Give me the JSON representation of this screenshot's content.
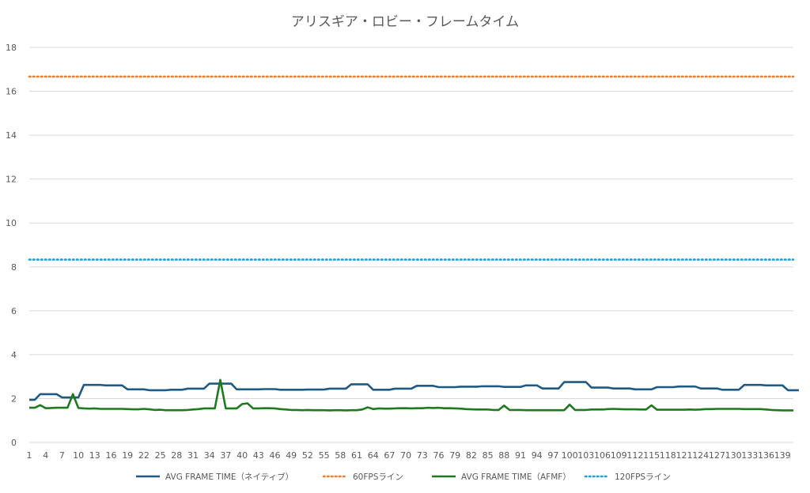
{
  "chart_data": {
    "type": "line",
    "title": "アリスギア・ロビー・フレームタイム",
    "xlabel": "",
    "ylabel": "",
    "ylim": [
      0,
      18
    ],
    "y_ticks": [
      "0",
      "2",
      "4",
      "6",
      "8",
      "10",
      "12",
      "14",
      "16",
      "18"
    ],
    "x_range": [
      1,
      141
    ],
    "x_tick_labels": [
      "1",
      "4",
      "7",
      "10",
      "13",
      "16",
      "19",
      "22",
      "25",
      "28",
      "31",
      "34",
      "37",
      "40",
      "43",
      "46",
      "49",
      "52",
      "55",
      "58",
      "61",
      "64",
      "67",
      "70",
      "73",
      "76",
      "79",
      "82",
      "85",
      "88",
      "91",
      "94",
      "97",
      "100",
      "103",
      "106",
      "109",
      "112",
      "115",
      "118",
      "121",
      "124",
      "127",
      "130",
      "133",
      "136",
      "139"
    ],
    "grid": true,
    "legend_position": "bottom",
    "series": [
      {
        "name": "AVG FRAME TIME（ネイティブ）",
        "color": "#1f5a85",
        "style": "solid",
        "values": [
          1.94,
          1.94,
          2.2,
          2.2,
          2.2,
          2.2,
          2.05,
          2.05,
          2.05,
          2.05,
          2.62,
          2.62,
          2.62,
          2.62,
          2.6,
          2.6,
          2.6,
          2.6,
          2.42,
          2.42,
          2.42,
          2.42,
          2.38,
          2.38,
          2.38,
          2.38,
          2.4,
          2.4,
          2.4,
          2.45,
          2.45,
          2.45,
          2.45,
          2.68,
          2.68,
          2.68,
          2.68,
          2.68,
          2.42,
          2.42,
          2.42,
          2.42,
          2.42,
          2.43,
          2.43,
          2.43,
          2.4,
          2.4,
          2.4,
          2.4,
          2.4,
          2.41,
          2.41,
          2.41,
          2.41,
          2.45,
          2.45,
          2.45,
          2.45,
          2.65,
          2.65,
          2.65,
          2.65,
          2.4,
          2.4,
          2.4,
          2.4,
          2.45,
          2.45,
          2.45,
          2.45,
          2.58,
          2.58,
          2.58,
          2.58,
          2.52,
          2.52,
          2.52,
          2.52,
          2.54,
          2.54,
          2.54,
          2.54,
          2.56,
          2.56,
          2.56,
          2.56,
          2.53,
          2.53,
          2.53,
          2.53,
          2.6,
          2.6,
          2.6,
          2.46,
          2.46,
          2.46,
          2.46,
          2.75,
          2.75,
          2.75,
          2.75,
          2.75,
          2.5,
          2.5,
          2.5,
          2.5,
          2.46,
          2.46,
          2.46,
          2.46,
          2.42,
          2.42,
          2.42,
          2.42,
          2.52,
          2.52,
          2.52,
          2.52,
          2.55,
          2.55,
          2.55,
          2.55,
          2.46,
          2.46,
          2.46,
          2.46,
          2.4,
          2.4,
          2.4,
          2.4,
          2.62,
          2.62,
          2.62,
          2.62,
          2.6,
          2.6,
          2.6,
          2.6,
          2.38,
          2.38,
          2.38
        ],
        "markers": false
      },
      {
        "name": "60FPSライン",
        "color": "#ed7d31",
        "style": "dotted",
        "constant": 16.67
      },
      {
        "name": "AVG FRAME TIME（AFMF）",
        "color": "#1f7a1f",
        "style": "solid",
        "values": [
          1.58,
          1.58,
          1.7,
          1.56,
          1.57,
          1.58,
          1.58,
          1.58,
          2.2,
          1.57,
          1.55,
          1.54,
          1.55,
          1.53,
          1.53,
          1.53,
          1.53,
          1.53,
          1.52,
          1.51,
          1.51,
          1.53,
          1.51,
          1.48,
          1.49,
          1.47,
          1.47,
          1.47,
          1.47,
          1.48,
          1.5,
          1.52,
          1.55,
          1.55,
          1.55,
          2.85,
          1.55,
          1.55,
          1.55,
          1.75,
          1.78,
          1.55,
          1.55,
          1.56,
          1.56,
          1.55,
          1.52,
          1.5,
          1.48,
          1.48,
          1.47,
          1.48,
          1.47,
          1.47,
          1.47,
          1.46,
          1.47,
          1.47,
          1.46,
          1.47,
          1.47,
          1.5,
          1.6,
          1.52,
          1.55,
          1.54,
          1.54,
          1.55,
          1.56,
          1.56,
          1.55,
          1.56,
          1.56,
          1.58,
          1.57,
          1.58,
          1.56,
          1.56,
          1.55,
          1.54,
          1.52,
          1.51,
          1.5,
          1.5,
          1.5,
          1.48,
          1.48,
          1.68,
          1.48,
          1.48,
          1.48,
          1.47,
          1.47,
          1.47,
          1.47,
          1.47,
          1.47,
          1.47,
          1.47,
          1.72,
          1.48,
          1.48,
          1.48,
          1.5,
          1.5,
          1.5,
          1.52,
          1.53,
          1.52,
          1.51,
          1.51,
          1.51,
          1.5,
          1.5,
          1.69,
          1.49,
          1.49,
          1.49,
          1.49,
          1.49,
          1.49,
          1.5,
          1.49,
          1.5,
          1.52,
          1.52,
          1.53,
          1.53,
          1.53,
          1.53,
          1.53,
          1.52,
          1.52,
          1.52,
          1.52,
          1.5,
          1.48,
          1.47,
          1.46,
          1.46,
          1.46
        ],
        "markers": false
      },
      {
        "name": "120FPSライン",
        "color": "#1fa0d8",
        "style": "dotted",
        "constant": 8.33
      }
    ]
  }
}
